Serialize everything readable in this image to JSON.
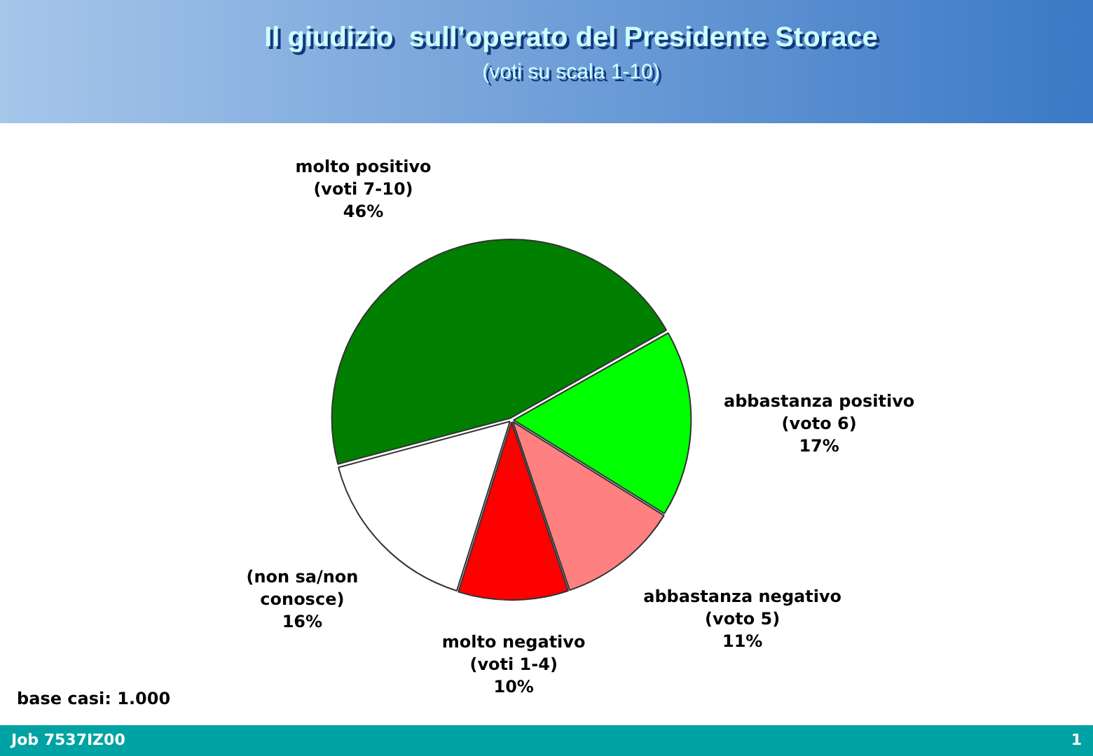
{
  "chart_data": {
    "type": "pie",
    "title": "Il giudizio  sull’operato del Presidente Storace",
    "subtitle": "(voti su scala 1-10)",
    "categories": [
      "molto positivo\n(voti 7-10)",
      "abbastanza positivo\n(voto 6)",
      "abbastanza negativo\n(voto 5)",
      "molto negativo\n(voti 1-4)",
      "(non sa/non\nconosce)"
    ],
    "values": [
      46,
      17,
      11,
      10,
      16
    ],
    "colors": [
      "#007f00",
      "#00ff00",
      "#ff8080",
      "#ff0000",
      "#ffffff"
    ],
    "value_labels": [
      "46%",
      "17%",
      "11%",
      "10%",
      "16%"
    ],
    "annotations": [
      "base casi: 1.000",
      "Job 7537IZ00",
      "1"
    ]
  }
}
